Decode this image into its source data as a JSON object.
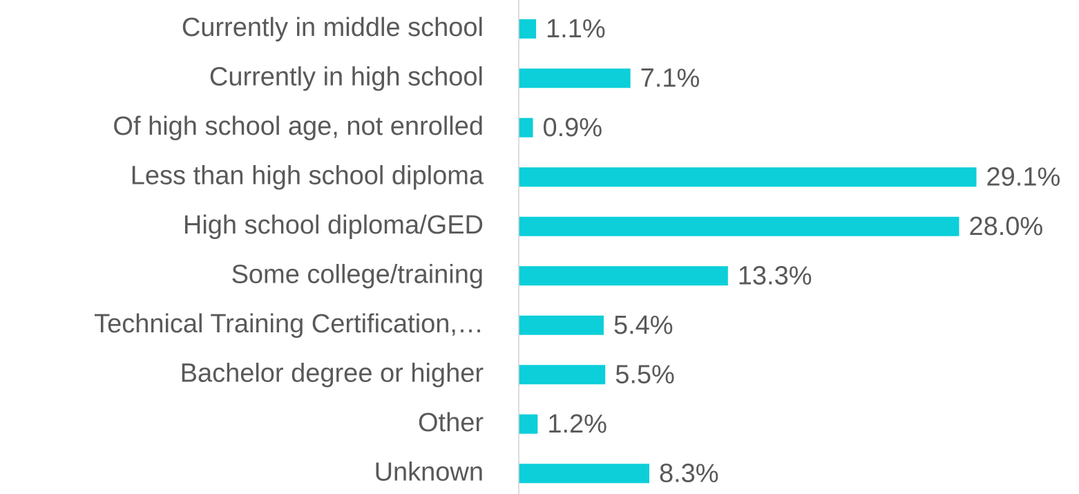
{
  "chart_data": {
    "type": "barh",
    "categories": [
      "Currently in middle school",
      "Currently in high school",
      "Of high school age, not enrolled",
      "Less than high school diploma",
      "High school diploma/GED",
      "Some college/training",
      "Technical Training Certification,…",
      "Bachelor degree or higher",
      "Other",
      "Unknown"
    ],
    "values": [
      1.1,
      7.1,
      0.9,
      29.1,
      28.0,
      13.3,
      5.4,
      5.5,
      1.2,
      8.3
    ],
    "value_labels": [
      "1.1%",
      "7.1%",
      "0.9%",
      "29.1%",
      "28.0%",
      "13.3%",
      "5.4%",
      "5.5%",
      "1.2%",
      "8.3%"
    ],
    "color": "#0ccfd9",
    "xlim": [
      0,
      30
    ]
  }
}
